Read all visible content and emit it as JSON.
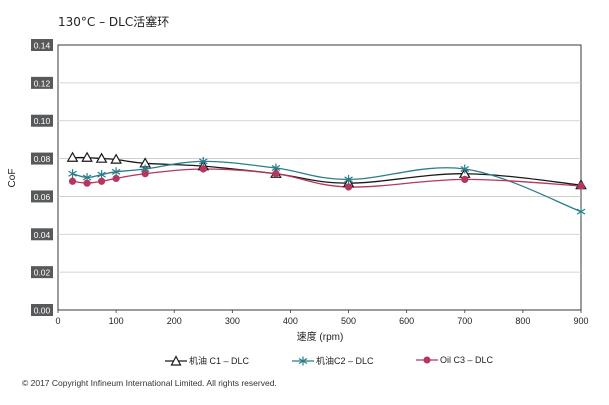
{
  "title": "130°C – DLC活塞环",
  "footer": "© 2017 Copyright Infineum International Limited. All rights reserved.",
  "colors": {
    "series1": "#1a1a1a",
    "series2": "#2a7d8c",
    "series3": "#b5365e",
    "plot_bg": "#ffffff",
    "grid": "#c8c8c8",
    "axis_box": "#3a3a3a",
    "tick_label_bg": "#58595b"
  },
  "chart_data": {
    "type": "line",
    "title": "130°C – DLC活塞环",
    "xlabel": "速度 (rpm)",
    "ylabel": "CoF",
    "xlim": [
      0,
      900
    ],
    "ylim": [
      0,
      0.14
    ],
    "x_ticks": [
      "0",
      "100",
      "200",
      "300",
      "400",
      "500",
      "600",
      "700",
      "800",
      "900"
    ],
    "y_ticks": [
      "0.00",
      "0.02",
      "0.04",
      "0.06",
      "0.08",
      "0.10",
      "0.12",
      "0.14"
    ],
    "grid": true,
    "legend_position": "bottom",
    "series": [
      {
        "name": "机油 C1 – DLC",
        "marker": "triangle",
        "x": [
          25,
          50,
          75,
          100,
          150,
          250,
          375,
          500,
          700,
          900
        ],
        "y": [
          0.0805,
          0.0805,
          0.08,
          0.0795,
          0.0775,
          0.076,
          0.072,
          0.067,
          0.072,
          0.066
        ]
      },
      {
        "name": "机油C2 – DLC",
        "marker": "asterisk",
        "x": [
          25,
          50,
          75,
          100,
          150,
          250,
          375,
          500,
          700,
          900
        ],
        "y": [
          0.072,
          0.07,
          0.0715,
          0.073,
          0.0745,
          0.0785,
          0.075,
          0.069,
          0.0745,
          0.052
        ]
      },
      {
        "name": "Oil C3 – DLC",
        "marker": "circle",
        "x": [
          25,
          50,
          75,
          100,
          150,
          250,
          375,
          500,
          700,
          900
        ],
        "y": [
          0.068,
          0.067,
          0.068,
          0.0695,
          0.072,
          0.0745,
          0.072,
          0.065,
          0.069,
          0.0655
        ]
      }
    ]
  }
}
